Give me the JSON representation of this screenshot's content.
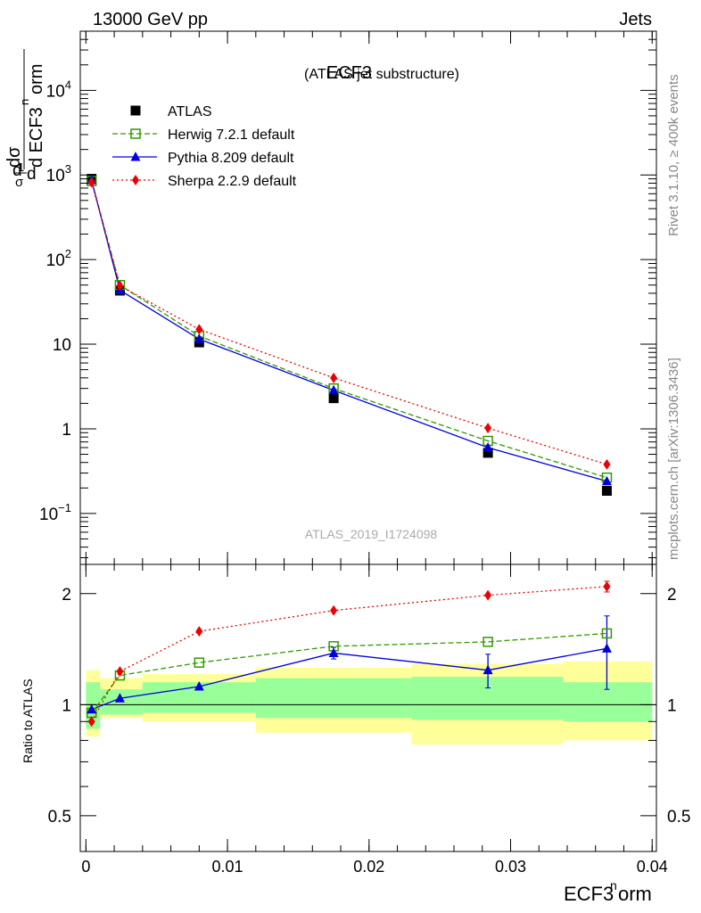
{
  "header": {
    "left": "13000 GeV pp",
    "right": "Jets"
  },
  "side_labels": {
    "rivet": "Rivet 3.1.10, ≥ 400k events",
    "mcplots": "mcplots.cern.ch [arXiv:1306.3436]"
  },
  "chart_data": {
    "type": "line",
    "title": "ECF3",
    "subtitle": "(ATLAS jet substructure)",
    "watermark": "ATLAS_2019_I1724098",
    "xlabel": "ECF3^norm",
    "ylabel": "1/σ dσ/d ECF3^norm",
    "ratio_ylabel": "Ratio to ATLAS",
    "xlim": [
      -0.0004,
      0.0403
    ],
    "ylim": [
      0.025,
      50000
    ],
    "yscale": "log",
    "ratio_ylim": [
      0.4,
      2.4
    ],
    "x": [
      0.0004,
      0.0024,
      0.008,
      0.0175,
      0.0284,
      0.0368
    ],
    "x_ticks": [
      {
        "value": 0,
        "label": "0"
      },
      {
        "value": 0.01,
        "label": "0.01"
      },
      {
        "value": 0.02,
        "label": "0.02"
      },
      {
        "value": 0.03,
        "label": "0.03"
      },
      {
        "value": 0.04,
        "label": "0.04"
      }
    ],
    "y_ticks": [
      {
        "value": 0.1,
        "base": "10",
        "exp": "−1"
      },
      {
        "value": 1,
        "base": "1",
        "exp": ""
      },
      {
        "value": 10,
        "base": "10",
        "exp": ""
      },
      {
        "value": 100,
        "base": "10",
        "exp": "2"
      },
      {
        "value": 1000,
        "base": "10",
        "exp": "3"
      },
      {
        "value": 10000,
        "base": "10",
        "exp": "4"
      }
    ],
    "ratio_ticks": [
      {
        "value": 0.5,
        "label": "0.5"
      },
      {
        "value": 1,
        "label": "1"
      },
      {
        "value": 2,
        "label": "2"
      }
    ],
    "legend_position": "top-left",
    "series": [
      {
        "name": "ATLAS",
        "color": "#000000",
        "marker": "square-filled",
        "line": "none",
        "values": [
          900,
          43,
          10.5,
          2.3,
          0.52,
          0.185
        ]
      },
      {
        "name": "Herwig 7.2.1 default",
        "color": "#339900",
        "marker": "square-open",
        "line": "dashed",
        "values": [
          850,
          50,
          12.5,
          3.0,
          0.72,
          0.265
        ],
        "ratio": [
          0.95,
          1.2,
          1.3,
          1.44,
          1.48,
          1.56
        ],
        "ratio_err": [
          0,
          0,
          0,
          0,
          0,
          0
        ]
      },
      {
        "name": "Pythia 8.209 default",
        "color": "#0000dd",
        "marker": "triangle-filled",
        "line": "solid",
        "values": [
          870,
          43.5,
          11.5,
          2.85,
          0.6,
          0.24
        ],
        "ratio": [
          0.97,
          1.04,
          1.12,
          1.38,
          1.24,
          1.42
        ],
        "ratio_err": [
          0,
          0,
          0,
          0.05,
          0.13,
          0.32
        ]
      },
      {
        "name": "Sherpa 2.2.9 default",
        "color": "#ee0000",
        "marker": "diamond-filled",
        "line": "dotted",
        "values": [
          820,
          49,
          15,
          4.0,
          1.02,
          0.38
        ],
        "ratio": [
          0.9,
          1.23,
          1.58,
          1.8,
          1.98,
          2.09
        ],
        "ratio_err": [
          0,
          0,
          0,
          0,
          0,
          0.07
        ]
      }
    ],
    "uncertainty_bands": {
      "edges": [
        0,
        0.001,
        0.004,
        0.012,
        0.023,
        0.0337,
        0.04
      ],
      "green": [
        [
          0.86,
          1.15
        ],
        [
          0.94,
          1.1
        ],
        [
          0.95,
          1.15
        ],
        [
          0.92,
          1.18
        ],
        [
          0.91,
          1.19
        ],
        [
          0.9,
          1.15
        ]
      ],
      "yellow": [
        [
          0.82,
          1.24
        ],
        [
          0.92,
          1.18
        ],
        [
          0.9,
          1.21
        ],
        [
          0.84,
          1.26
        ],
        [
          0.78,
          1.29
        ],
        [
          0.8,
          1.31
        ]
      ],
      "green_color": "#99ff99",
      "yellow_color": "#ffff99"
    }
  }
}
